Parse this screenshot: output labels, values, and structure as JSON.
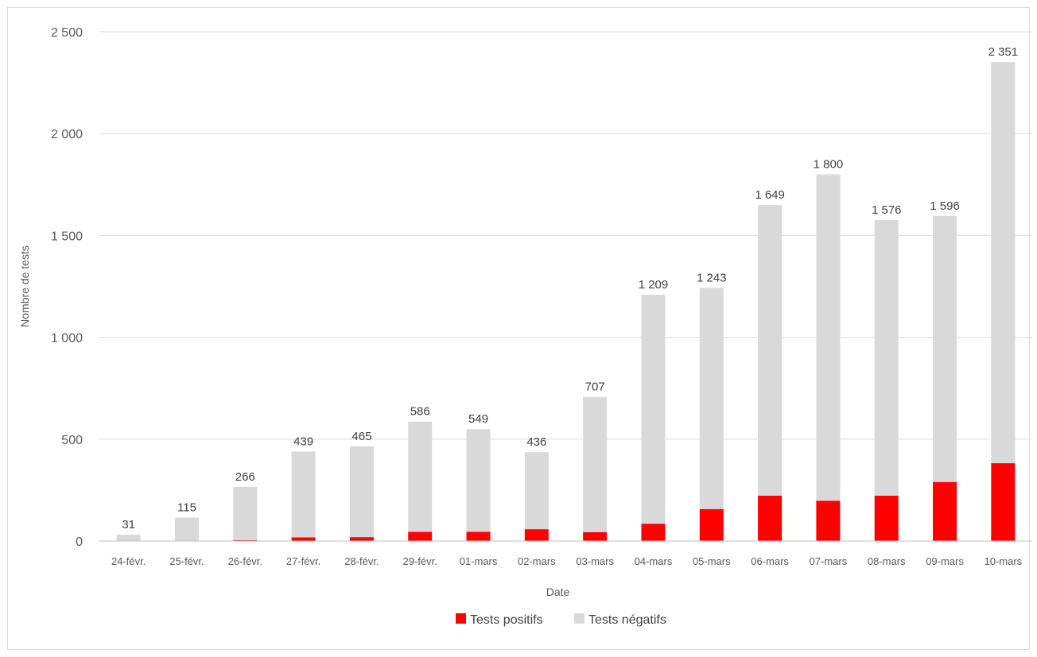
{
  "chart_data": {
    "type": "bar",
    "stacked": true,
    "categories": [
      "24-févr.",
      "25-févr.",
      "26-févr.",
      "27-févr.",
      "28-févr.",
      "29-févr.",
      "01-mars",
      "02-mars",
      "03-mars",
      "04-mars",
      "05-mars",
      "06-mars",
      "07-mars",
      "08-mars",
      "09-mars",
      "10-mars"
    ],
    "series": [
      {
        "name": "Tests positifs",
        "color": "#ff0000",
        "values": [
          0,
          1,
          4,
          18,
          19,
          45,
          45,
          58,
          44,
          85,
          157,
          223,
          198,
          223,
          290,
          382
        ]
      },
      {
        "name": "Tests négatifs",
        "color": "#d9d9d9",
        "values": [
          31,
          114,
          262,
          421,
          446,
          541,
          504,
          378,
          663,
          1124,
          1086,
          1426,
          1602,
          1353,
          1306,
          1969
        ]
      }
    ],
    "totals": [
      31,
      115,
      266,
      439,
      465,
      586,
      549,
      436,
      707,
      1209,
      1243,
      1649,
      1800,
      1576,
      1596,
      2351
    ],
    "total_labels": [
      "31",
      "115",
      "266",
      "439",
      "465",
      "586",
      "549",
      "436",
      "707",
      "1 209",
      "1 243",
      "1 649",
      "1 800",
      "1 576",
      "1 596",
      "2 351"
    ],
    "yticks": [
      0,
      500,
      1000,
      1500,
      2000,
      2500
    ],
    "ytick_labels": [
      "0",
      "500",
      "1 000",
      "1 500",
      "2 000",
      "2 500"
    ],
    "ylim": [
      0,
      2500
    ],
    "xlabel": "Date",
    "ylabel": "Nombre de tests",
    "grid": true,
    "legend_position": "bottom"
  }
}
